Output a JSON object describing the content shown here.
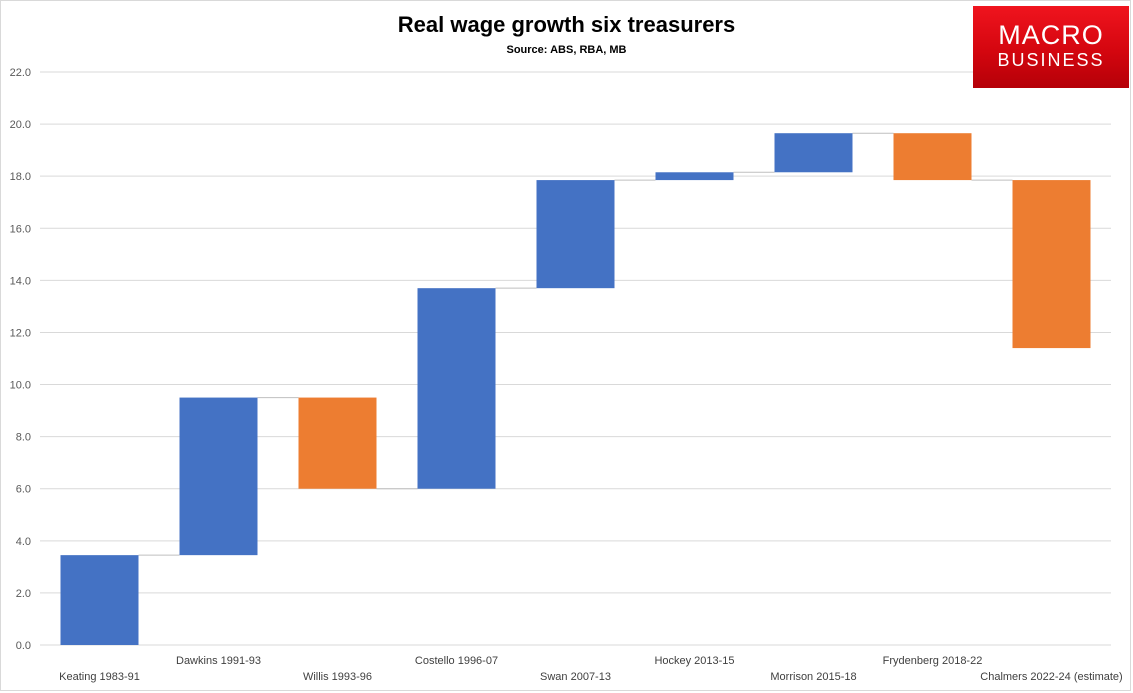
{
  "logo": {
    "line1": "MACRO",
    "line2": "BUSINESS"
  },
  "colors": {
    "increase": "#4472c4",
    "decrease": "#ed7d31",
    "connector": "#bfbfbf",
    "grid": "#d9d9d9"
  },
  "chart_data": {
    "type": "waterfall",
    "title": "Real wage growth six treasurers",
    "subtitle": "Source: ABS, RBA, MB",
    "xlabel": "",
    "ylabel": "",
    "ylim": [
      0,
      22
    ],
    "yticks": [
      "0.0",
      "2.0",
      "4.0",
      "6.0",
      "8.0",
      "10.0",
      "12.0",
      "14.0",
      "16.0",
      "18.0",
      "20.0",
      "22.0"
    ],
    "grid": true,
    "legend": "none",
    "categories": [
      "Keating 1983-91",
      "Dawkins 1991-93",
      "Willis 1993-96",
      "Costello 1996-07",
      "Swan 2007-13",
      "Hockey 2013-15",
      "Morrison 2015-18",
      "Frydenberg 2018-22",
      "Chalmers 2022-24 (estimate)"
    ],
    "changes": [
      3.45,
      6.05,
      -3.5,
      7.7,
      4.15,
      0.3,
      1.5,
      -1.8,
      -6.45
    ],
    "cumulative": [
      3.45,
      9.5,
      6.0,
      13.7,
      17.85,
      18.15,
      19.65,
      17.85,
      11.4
    ]
  }
}
